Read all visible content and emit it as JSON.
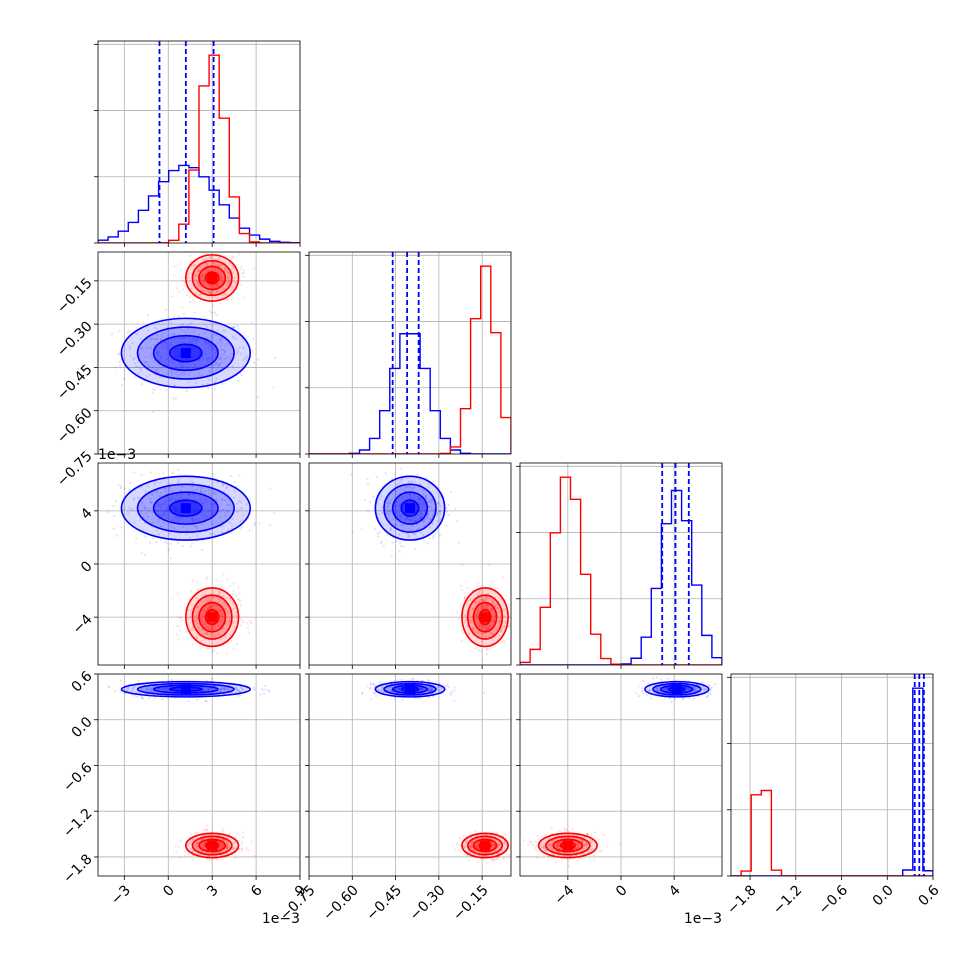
{
  "chart_data": {
    "type": "corner",
    "colors": {
      "series_a": "#0000ff",
      "series_b": "#ff0000",
      "grid": "#b0b0b0"
    },
    "series": [
      {
        "color": "#0000ff",
        "means": [
          0.0012,
          -0.4,
          0.0042,
          0.4
        ],
        "sds": [
          0.0022,
          0.06,
          0.0012,
          0.05
        ],
        "quantiles": [
          [
            -0.0006,
            0.0012,
            0.0031
          ],
          [
            -0.46,
            -0.41,
            -0.37
          ],
          [
            0.0031,
            0.0041,
            0.0051
          ],
          [
            0.36,
            0.42,
            0.48
          ]
        ]
      },
      {
        "color": "#ff0000",
        "means": [
          0.003,
          -0.14,
          -0.004,
          -1.65
        ],
        "sds": [
          0.0009,
          0.04,
          0.0011,
          0.08
        ]
      }
    ],
    "panels": [
      {
        "row": 0,
        "col": 0,
        "type": "hist"
      },
      {
        "row": 1,
        "col": 0,
        "type": "scatter"
      },
      {
        "row": 1,
        "col": 1,
        "type": "hist"
      },
      {
        "row": 2,
        "col": 0,
        "type": "scatter"
      },
      {
        "row": 2,
        "col": 1,
        "type": "scatter"
      },
      {
        "row": 2,
        "col": 2,
        "type": "hist"
      },
      {
        "row": 3,
        "col": 0,
        "type": "scatter"
      },
      {
        "row": 3,
        "col": 1,
        "type": "scatter"
      },
      {
        "row": 3,
        "col": 2,
        "type": "scatter"
      },
      {
        "row": 3,
        "col": 3,
        "type": "hist"
      }
    ],
    "axes": [
      {
        "range": [
          -0.0048,
          0.009
        ],
        "ticks": [
          -0.003,
          0,
          0.003,
          0.006,
          0.009
        ],
        "tick_labels": [
          "−3",
          "0",
          "3",
          "6",
          "9"
        ],
        "offset_label": "1e−3"
      },
      {
        "range": [
          -0.75,
          -0.05
        ],
        "ticks": [
          -0.75,
          -0.6,
          -0.45,
          -0.3,
          -0.15
        ],
        "tick_labels": [
          "−0.75",
          "−0.60",
          "−0.45",
          "−0.30",
          "−0.15"
        ],
        "offset_label": ""
      },
      {
        "range": [
          -0.0076,
          0.0076
        ],
        "ticks": [
          -0.004,
          0,
          0.004
        ],
        "tick_labels": [
          "−4",
          "0",
          "4"
        ],
        "offset_label": "1e−3"
      },
      {
        "range": [
          -2.05,
          0.6
        ],
        "ticks": [
          -1.8,
          -1.2,
          -0.6,
          0.0,
          0.6
        ],
        "tick_labels": [
          "−1.8",
          "−1.2",
          "−0.6",
          "0.0",
          "0.6"
        ],
        "offset_label": ""
      }
    ],
    "grid": true
  }
}
